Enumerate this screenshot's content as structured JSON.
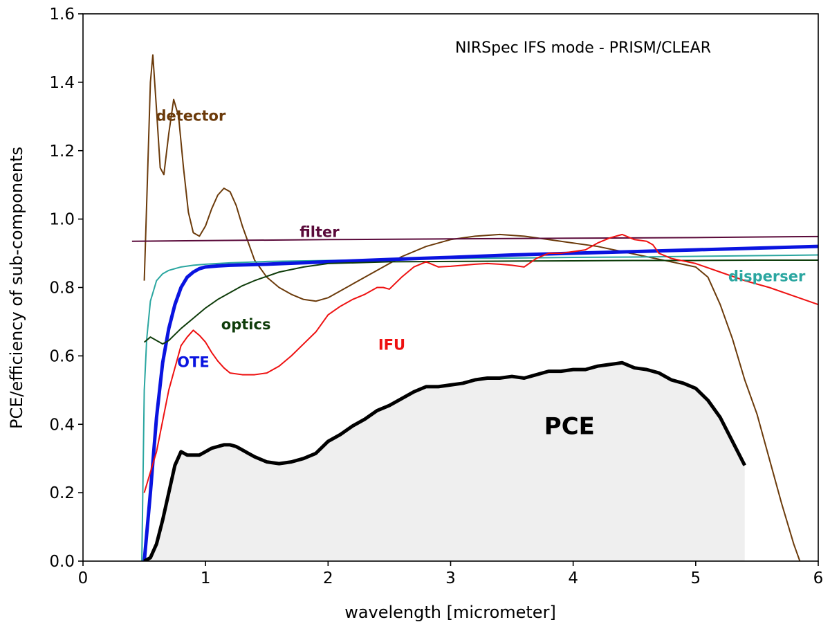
{
  "chart_data": {
    "type": "line",
    "title": "NIRSpec IFS mode - PRISM/CLEAR",
    "xlabel": "wavelength [micrometer]",
    "ylabel": "PCE/efficiency of sub-components",
    "xlim": [
      0,
      6
    ],
    "ylim": [
      0,
      1.6
    ],
    "xticks": [
      0,
      1,
      2,
      3,
      4,
      5,
      6
    ],
    "xtick_labels": [
      "0",
      "1",
      "2",
      "3",
      "4",
      "5",
      "6"
    ],
    "yticks": [
      0,
      0.2,
      0.4,
      0.6,
      0.8,
      1.0,
      1.2,
      1.4,
      1.6
    ],
    "ytick_labels": [
      "0.0",
      "0.2",
      "0.4",
      "0.6",
      "0.8",
      "1.0",
      "1.2",
      "1.4",
      "1.6"
    ],
    "grid": false,
    "series": [
      {
        "name": "detector",
        "color": "#6b3a0a",
        "width": 2,
        "x": [
          0.5,
          0.52,
          0.55,
          0.57,
          0.6,
          0.63,
          0.66,
          0.7,
          0.74,
          0.78,
          0.82,
          0.86,
          0.9,
          0.95,
          1.0,
          1.05,
          1.1,
          1.15,
          1.2,
          1.25,
          1.3,
          1.4,
          1.5,
          1.6,
          1.7,
          1.8,
          1.9,
          2.0,
          2.2,
          2.4,
          2.6,
          2.8,
          3.0,
          3.2,
          3.4,
          3.6,
          3.8,
          4.0,
          4.2,
          4.4,
          4.6,
          4.8,
          5.0,
          5.1,
          5.2,
          5.3,
          5.4,
          5.5,
          5.6,
          5.7,
          5.8,
          5.85
        ],
        "y": [
          0.82,
          1.05,
          1.4,
          1.48,
          1.32,
          1.15,
          1.13,
          1.25,
          1.35,
          1.3,
          1.15,
          1.02,
          0.96,
          0.95,
          0.98,
          1.03,
          1.07,
          1.09,
          1.08,
          1.04,
          0.98,
          0.88,
          0.83,
          0.8,
          0.78,
          0.765,
          0.76,
          0.77,
          0.81,
          0.85,
          0.89,
          0.92,
          0.94,
          0.95,
          0.955,
          0.95,
          0.94,
          0.93,
          0.92,
          0.905,
          0.89,
          0.875,
          0.86,
          0.83,
          0.75,
          0.65,
          0.53,
          0.43,
          0.3,
          0.17,
          0.05,
          0.0
        ]
      },
      {
        "name": "filter",
        "color": "#5a0a3a",
        "width": 2,
        "x": [
          0.4,
          1,
          2,
          3,
          4,
          5,
          6
        ],
        "y": [
          0.935,
          0.937,
          0.94,
          0.942,
          0.944,
          0.946,
          0.949
        ]
      },
      {
        "name": "disperser",
        "color": "#2aa6a0",
        "width": 2,
        "x": [
          0.48,
          0.5,
          0.52,
          0.55,
          0.6,
          0.65,
          0.7,
          0.8,
          0.9,
          1.0,
          1.2,
          1.5,
          2.0,
          2.5,
          3.0,
          3.5,
          4.0,
          4.5,
          5.0,
          5.5,
          6.0
        ],
        "y": [
          0.0,
          0.5,
          0.65,
          0.76,
          0.82,
          0.84,
          0.85,
          0.86,
          0.865,
          0.868,
          0.872,
          0.876,
          0.879,
          0.882,
          0.885,
          0.886,
          0.888,
          0.889,
          0.891,
          0.893,
          0.895
        ]
      },
      {
        "name": "OTE",
        "color": "#0a14e0",
        "width": 5,
        "x": [
          0.5,
          0.55,
          0.6,
          0.65,
          0.7,
          0.75,
          0.8,
          0.85,
          0.9,
          0.95,
          1.0,
          1.1,
          1.2,
          1.5,
          2.0,
          2.5,
          3.0,
          3.5,
          4.0,
          4.5,
          5.0,
          5.5,
          6.0
        ],
        "y": [
          0.0,
          0.2,
          0.42,
          0.58,
          0.68,
          0.75,
          0.8,
          0.83,
          0.845,
          0.855,
          0.86,
          0.863,
          0.865,
          0.868,
          0.875,
          0.882,
          0.888,
          0.895,
          0.9,
          0.905,
          0.91,
          0.915,
          0.92
        ]
      },
      {
        "name": "optics",
        "color": "#0e3c0a",
        "width": 2,
        "x": [
          0.5,
          0.55,
          0.6,
          0.65,
          0.7,
          0.8,
          0.9,
          1.0,
          1.1,
          1.2,
          1.3,
          1.4,
          1.6,
          1.8,
          2.0,
          2.5,
          3.0,
          3.5,
          4.0,
          4.5,
          5.0,
          5.5,
          6.0
        ],
        "y": [
          0.64,
          0.655,
          0.645,
          0.635,
          0.645,
          0.68,
          0.71,
          0.74,
          0.765,
          0.785,
          0.805,
          0.82,
          0.845,
          0.86,
          0.87,
          0.875,
          0.876,
          0.877,
          0.878,
          0.879,
          0.879,
          0.88,
          0.88
        ]
      },
      {
        "name": "IFU",
        "color": "#ee1111",
        "width": 2,
        "x": [
          0.5,
          0.6,
          0.7,
          0.8,
          0.85,
          0.9,
          0.95,
          1.0,
          1.05,
          1.1,
          1.15,
          1.2,
          1.3,
          1.4,
          1.5,
          1.6,
          1.7,
          1.8,
          1.9,
          2.0,
          2.1,
          2.2,
          2.3,
          2.4,
          2.45,
          2.5,
          2.6,
          2.7,
          2.8,
          2.9,
          3.0,
          3.1,
          3.2,
          3.3,
          3.4,
          3.5,
          3.6,
          3.7,
          3.8,
          3.9,
          4.0,
          4.1,
          4.2,
          4.3,
          4.4,
          4.5,
          4.6,
          4.65,
          4.7,
          4.8,
          5.0,
          5.2,
          5.4,
          5.6,
          5.8,
          6.0
        ],
        "y": [
          0.2,
          0.32,
          0.5,
          0.63,
          0.655,
          0.675,
          0.66,
          0.64,
          0.61,
          0.585,
          0.565,
          0.55,
          0.545,
          0.545,
          0.55,
          0.57,
          0.6,
          0.635,
          0.67,
          0.72,
          0.745,
          0.765,
          0.78,
          0.8,
          0.8,
          0.795,
          0.83,
          0.86,
          0.875,
          0.86,
          0.862,
          0.865,
          0.868,
          0.87,
          0.868,
          0.865,
          0.86,
          0.885,
          0.9,
          0.9,
          0.905,
          0.91,
          0.93,
          0.945,
          0.955,
          0.94,
          0.935,
          0.925,
          0.9,
          0.885,
          0.87,
          0.845,
          0.82,
          0.8,
          0.775,
          0.75
        ]
      },
      {
        "name": "PCE",
        "color": "#000000",
        "width": 5,
        "fill": "#efefef",
        "x": [
          0.5,
          0.55,
          0.6,
          0.65,
          0.7,
          0.75,
          0.8,
          0.85,
          0.9,
          0.95,
          1.0,
          1.05,
          1.1,
          1.15,
          1.2,
          1.25,
          1.3,
          1.35,
          1.4,
          1.5,
          1.6,
          1.7,
          1.8,
          1.9,
          2.0,
          2.1,
          2.2,
          2.3,
          2.4,
          2.5,
          2.6,
          2.7,
          2.8,
          2.9,
          3.0,
          3.1,
          3.2,
          3.3,
          3.4,
          3.5,
          3.6,
          3.7,
          3.8,
          3.9,
          4.0,
          4.1,
          4.2,
          4.3,
          4.4,
          4.5,
          4.6,
          4.7,
          4.8,
          4.9,
          5.0,
          5.1,
          5.2,
          5.3,
          5.4
        ],
        "y": [
          0.0,
          0.01,
          0.05,
          0.12,
          0.2,
          0.28,
          0.32,
          0.31,
          0.31,
          0.31,
          0.32,
          0.33,
          0.335,
          0.34,
          0.34,
          0.335,
          0.325,
          0.315,
          0.305,
          0.29,
          0.285,
          0.29,
          0.3,
          0.315,
          0.35,
          0.37,
          0.395,
          0.415,
          0.44,
          0.455,
          0.475,
          0.495,
          0.51,
          0.51,
          0.515,
          0.52,
          0.53,
          0.535,
          0.535,
          0.54,
          0.535,
          0.545,
          0.555,
          0.555,
          0.56,
          0.56,
          0.57,
          0.575,
          0.58,
          0.565,
          0.56,
          0.55,
          0.53,
          0.52,
          0.505,
          0.47,
          0.42,
          0.35,
          0.28
        ]
      }
    ],
    "annotations": [
      {
        "text": "detector",
        "x": 0.88,
        "y": 1.3,
        "color": "#6b3a0a",
        "size": "normal"
      },
      {
        "text": "filter",
        "x": 1.93,
        "y": 0.96,
        "color": "#5a0a3a",
        "size": "normal"
      },
      {
        "text": "disperser",
        "x": 5.58,
        "y": 0.83,
        "color": "#2aa6a0",
        "size": "normal"
      },
      {
        "text": "optics",
        "x": 1.33,
        "y": 0.69,
        "color": "#0e3c0a",
        "size": "normal"
      },
      {
        "text": "IFU",
        "x": 2.52,
        "y": 0.63,
        "color": "#ee1111",
        "size": "normal"
      },
      {
        "text": "OTE",
        "x": 0.9,
        "y": 0.58,
        "color": "#0a14e0",
        "size": "normal"
      },
      {
        "text": "PCE",
        "x": 3.97,
        "y": 0.39,
        "color": "#000000",
        "size": "large"
      }
    ]
  }
}
